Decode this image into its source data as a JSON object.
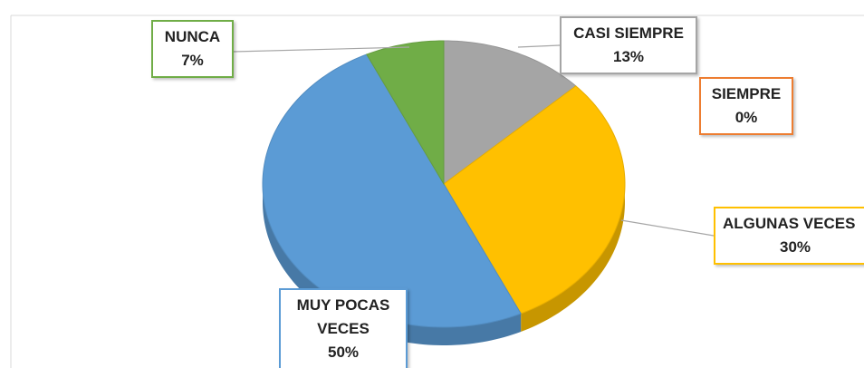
{
  "chart_data": {
    "type": "pie",
    "start_angle": -90,
    "direction": "clockwise",
    "categories": [
      "CASI SIEMPRE",
      "SIEMPRE",
      "ALGUNAS VECES",
      "MUY POCAS VECES",
      "NUNCA"
    ],
    "values": [
      13,
      0,
      30,
      50,
      7
    ],
    "value_labels": [
      "13%",
      "0%",
      "30%",
      "50%",
      "7%"
    ],
    "colors": [
      "#a5a5a5",
      "#ed7d31",
      "#ffc000",
      "#5b9bd5",
      "#70ad47"
    ]
  }
}
